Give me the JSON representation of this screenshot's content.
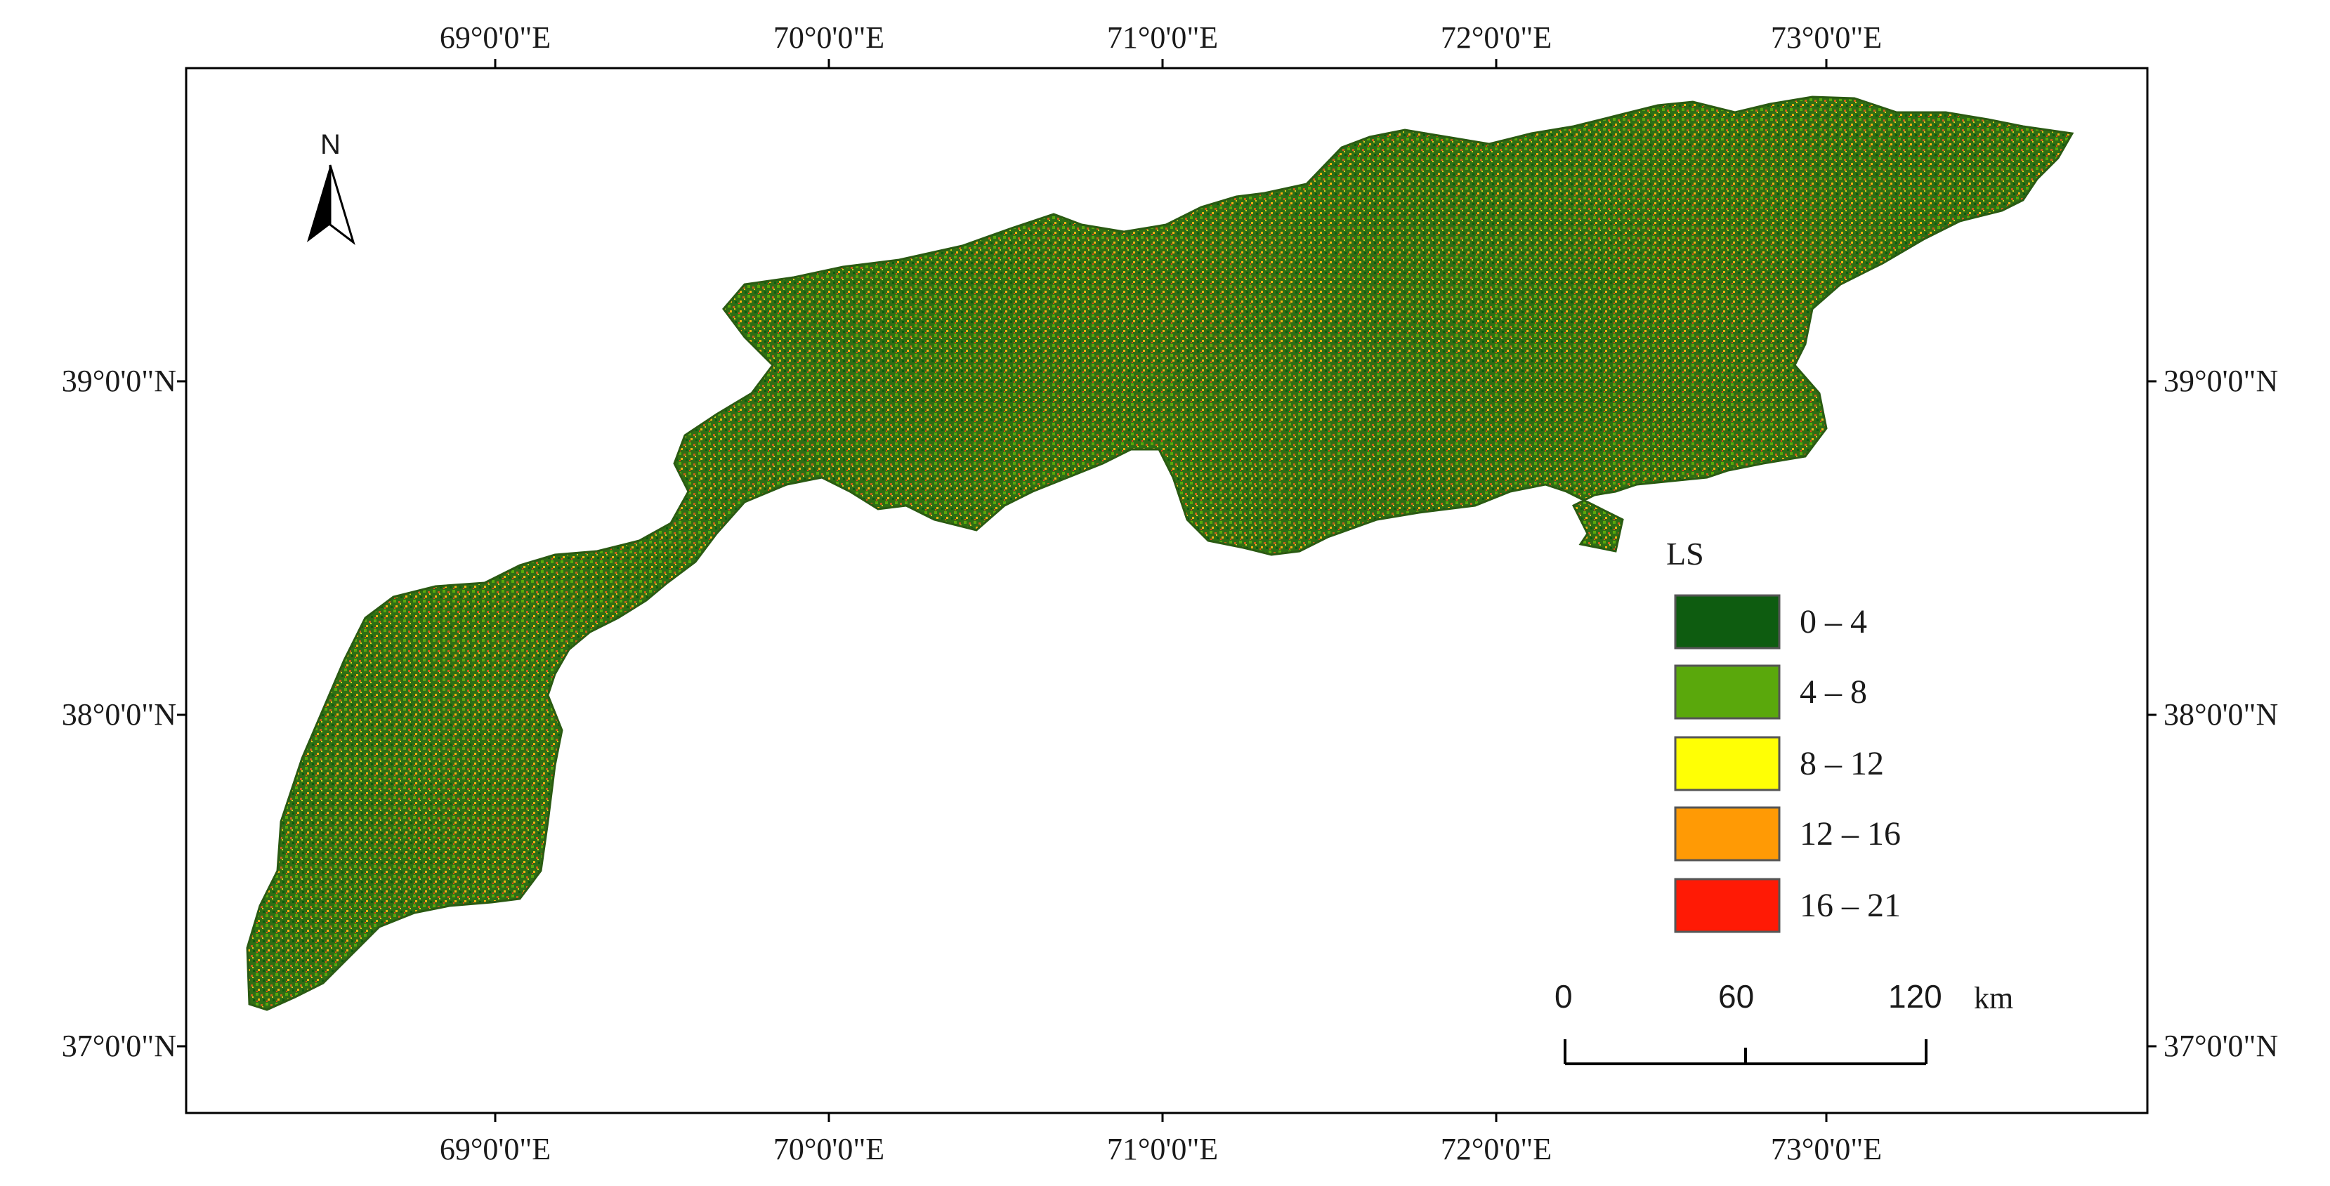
{
  "map": {
    "lon_labels": [
      "69°0'0\"E",
      "70°0'0\"E",
      "71°0'0\"E",
      "72°0'0\"E",
      "73°0'0\"E"
    ],
    "lat_labels": [
      "39°0'0\"N",
      "38°0'0\"N",
      "37°0'0\"N"
    ],
    "north_arrow": {
      "letter": "N",
      "icon": "north-arrow-icon"
    },
    "legend": {
      "title": "LS",
      "classes": [
        {
          "label": "0 – 4",
          "color": "#0e5c10"
        },
        {
          "label": "4 – 8",
          "color": "#5aa80c"
        },
        {
          "label": "8 – 12",
          "color": "#ffff05"
        },
        {
          "label": "12 – 16",
          "color": "#ff9a05"
        },
        {
          "label": "16 – 21",
          "color": "#ff1a05"
        }
      ]
    },
    "scale_bar": {
      "labels": [
        "0",
        "60",
        "120"
      ],
      "unit": "km"
    },
    "frame_color": "#000000"
  }
}
